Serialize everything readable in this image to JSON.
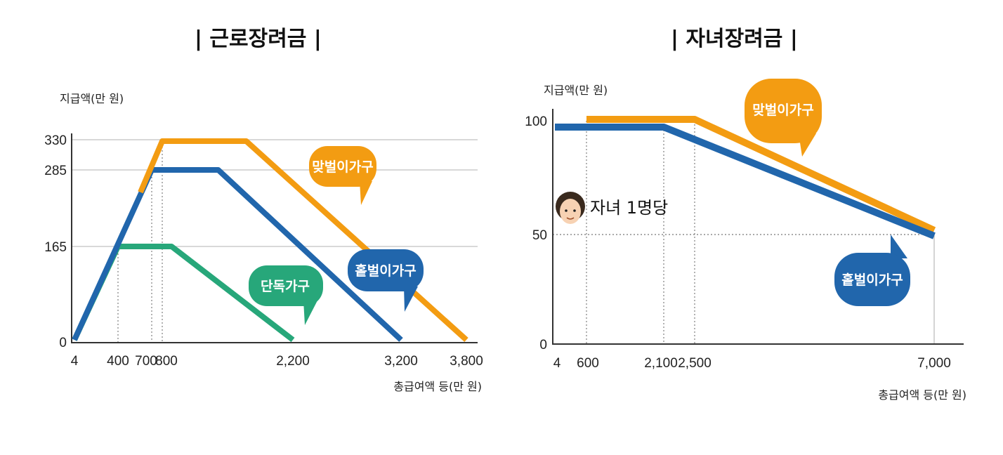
{
  "titles": {
    "left": "| 근로장려금 |",
    "right": "| 자녀장려금 |"
  },
  "colors": {
    "dual": "#F39C12",
    "single_earner": "#2166AC",
    "single_person": "#27A77A",
    "grid": "#cccccc",
    "axis": "#333333"
  },
  "chart_data": [
    {
      "type": "line",
      "title": "| 근로장려금 |",
      "ylabel": "지급액(만 원)",
      "xlabel": "총급여액 등(만 원)",
      "x_ticks": [
        "4",
        "400",
        "700",
        "800",
        "2,200",
        "3,200",
        "3,800"
      ],
      "y_ticks": [
        "0",
        "165",
        "285",
        "330"
      ],
      "grid": true,
      "series": [
        {
          "name": "단독가구",
          "color": "#27A77A",
          "points": [
            [
              4,
              0
            ],
            [
              400,
              165
            ],
            [
              900,
              165
            ],
            [
              2200,
              0
            ]
          ]
        },
        {
          "name": "홑벌이가구",
          "color": "#2166AC",
          "points": [
            [
              4,
              0
            ],
            [
              700,
              285
            ],
            [
              1400,
              285
            ],
            [
              3200,
              0
            ]
          ]
        },
        {
          "name": "맞벌이가구",
          "color": "#F39C12",
          "points": [
            [
              600,
              250
            ],
            [
              800,
              330
            ],
            [
              1700,
              330
            ],
            [
              3800,
              0
            ]
          ]
        }
      ]
    },
    {
      "type": "line",
      "title": "| 자녀장려금 |",
      "ylabel": "지급액(만 원)",
      "xlabel": "총급여액 등(만 원)",
      "x_ticks": [
        "4",
        "600",
        "2,100",
        "2,500",
        "7,000"
      ],
      "y_ticks": [
        "0",
        "50",
        "100"
      ],
      "annotation": "자녀 1명당",
      "grid": false,
      "series": [
        {
          "name": "맞벌이가구",
          "color": "#F39C12",
          "points": [
            [
              600,
              100
            ],
            [
              2500,
              100
            ],
            [
              7000,
              50
            ]
          ]
        },
        {
          "name": "홑벌이가구",
          "color": "#2166AC",
          "points": [
            [
              4,
              100
            ],
            [
              2100,
              100
            ],
            [
              7000,
              50
            ]
          ]
        }
      ]
    }
  ]
}
